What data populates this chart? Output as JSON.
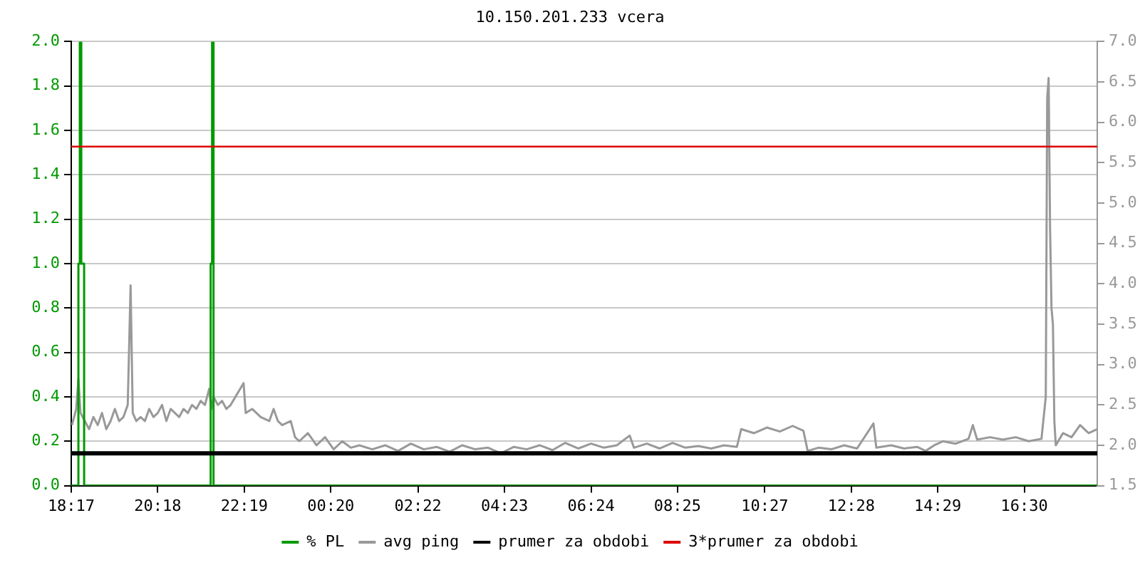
{
  "chart_data": {
    "type": "line",
    "title": "10.150.201.233 vcera",
    "xlim": [
      "--01-01T18:17",
      "--01-02T18:12"
    ],
    "xticks": [
      {
        "value": "--01-01T18:17",
        "label": "18:17"
      },
      {
        "value": "--01-01T20:18",
        "label": "20:18"
      },
      {
        "value": "--01-01T22:19",
        "label": "22:19"
      },
      {
        "value": "--01-02T00:20",
        "label": "00:20"
      },
      {
        "value": "--01-02T02:22",
        "label": "02:22"
      },
      {
        "value": "--01-02T04:23",
        "label": "04:23"
      },
      {
        "value": "--01-02T06:24",
        "label": "06:24"
      },
      {
        "value": "--01-02T08:25",
        "label": "08:25"
      },
      {
        "value": "--01-02T10:27",
        "label": "10:27"
      },
      {
        "value": "--01-02T12:28",
        "label": "12:28"
      },
      {
        "value": "--01-02T14:29",
        "label": "14:29"
      },
      {
        "value": "--01-02T16:30",
        "label": "16:30"
      }
    ],
    "ylim": [
      0,
      2
    ],
    "yticks": [
      {
        "value": 0,
        "label": "0.0"
      },
      {
        "value": 0.2,
        "label": "0.2"
      },
      {
        "value": 0.4,
        "label": "0.4"
      },
      {
        "value": 0.6,
        "label": "0.6"
      },
      {
        "value": 0.8,
        "label": "0.8"
      },
      {
        "value": 1,
        "label": "1.0"
      },
      {
        "value": 1.2,
        "label": "1.2"
      },
      {
        "value": 1.4,
        "label": "1.4"
      },
      {
        "value": 1.6,
        "label": "1.6"
      },
      {
        "value": 1.8,
        "label": "1.8"
      },
      {
        "value": 2,
        "label": "2.0"
      }
    ],
    "y2lim": [
      1.5,
      7
    ],
    "y2ticks": [
      {
        "value": 1.5,
        "label": "1.5"
      },
      {
        "value": 2,
        "label": "2.0"
      },
      {
        "value": 2.5,
        "label": "2.5"
      },
      {
        "value": 3,
        "label": "3.0"
      },
      {
        "value": 3.5,
        "label": "3.5"
      },
      {
        "value": 4,
        "label": "4.0"
      },
      {
        "value": 4.5,
        "label": "4.5"
      },
      {
        "value": 5,
        "label": "5.0"
      },
      {
        "value": 5.5,
        "label": "5.5"
      },
      {
        "value": 6,
        "label": "6.0"
      },
      {
        "value": 6.5,
        "label": "6.5"
      },
      {
        "value": 7,
        "label": "7.0"
      }
    ],
    "grid": "y",
    "legend": "bottom",
    "marker": "none",
    "series": [
      {
        "name": "% PL",
        "type": "step",
        "color": "#009900",
        "x": [
          "--01-01T18:17",
          "--01-01T18:25",
          "--01-01T18:27",
          "--01-01T18:29",
          "--01-01T18:31",
          "--01-01T18:33",
          "--01-01T18:35",
          "--01-01T21:30",
          "--01-01T21:32",
          "--01-01T21:34",
          "--01-01T21:36",
          "--01-02T18:12"
        ],
        "values": [
          0,
          0,
          1,
          2,
          1,
          1,
          0,
          0,
          1,
          2,
          0,
          0
        ]
      },
      {
        "name": "avg ping",
        "axis": "y2",
        "color": "#999999",
        "x": [
          "--01-01T18:18",
          "--01-01T18:24",
          "--01-01T18:27",
          "--01-01T18:30",
          "--01-01T18:36",
          "--01-01T18:42",
          "--01-01T18:48",
          "--01-01T18:54",
          "--01-01T19:00",
          "--01-01T19:06",
          "--01-01T19:12",
          "--01-01T19:18",
          "--01-01T19:24",
          "--01-01T19:30",
          "--01-01T19:36",
          "--01-01T19:40",
          "--01-01T19:43",
          "--01-01T19:48",
          "--01-01T19:54",
          "--01-01T20:00",
          "--01-01T20:06",
          "--01-01T20:12",
          "--01-01T20:18",
          "--01-01T20:24",
          "--01-01T20:30",
          "--01-01T20:36",
          "--01-01T20:42",
          "--01-01T20:48",
          "--01-01T20:54",
          "--01-01T21:00",
          "--01-01T21:06",
          "--01-01T21:12",
          "--01-01T21:18",
          "--01-01T21:24",
          "--01-01T21:30",
          "--01-01T21:33",
          "--01-01T21:36",
          "--01-01T21:42",
          "--01-01T21:48",
          "--01-01T21:54",
          "--01-01T22:00",
          "--01-01T22:18",
          "--01-01T22:21",
          "--01-01T22:30",
          "--01-01T22:42",
          "--01-01T22:54",
          "--01-01T23:00",
          "--01-01T23:06",
          "--01-01T23:12",
          "--01-01T23:24",
          "--01-01T23:30",
          "--01-01T23:36",
          "--01-01T23:48",
          "--01-02T00:00",
          "--01-02T00:12",
          "--01-02T00:24",
          "--01-02T00:36",
          "--01-02T00:48",
          "--01-02T01:00",
          "--01-02T01:18",
          "--01-02T01:36",
          "--01-02T01:54",
          "--01-02T02:12",
          "--01-02T02:30",
          "--01-02T02:48",
          "--01-02T03:06",
          "--01-02T03:24",
          "--01-02T03:42",
          "--01-02T04:00",
          "--01-02T04:18",
          "--01-02T04:36",
          "--01-02T04:54",
          "--01-02T05:12",
          "--01-02T05:30",
          "--01-02T05:48",
          "--01-02T06:06",
          "--01-02T06:24",
          "--01-02T06:42",
          "--01-02T07:00",
          "--01-02T07:18",
          "--01-02T07:24",
          "--01-02T07:42",
          "--01-02T08:00",
          "--01-02T08:18",
          "--01-02T08:36",
          "--01-02T08:54",
          "--01-02T09:12",
          "--01-02T09:30",
          "--01-02T09:48",
          "--01-02T09:54",
          "--01-02T10:12",
          "--01-02T10:30",
          "--01-02T10:48",
          "--01-02T11:06",
          "--01-02T11:21",
          "--01-02T11:27",
          "--01-02T11:42",
          "--01-02T12:00",
          "--01-02T12:18",
          "--01-02T12:36",
          "--01-02T12:59",
          "--01-02T13:03",
          "--01-02T13:24",
          "--01-02T13:42",
          "--01-02T14:00",
          "--01-02T14:12",
          "--01-02T14:24",
          "--01-02T14:36",
          "--01-02T14:54",
          "--01-02T15:12",
          "--01-02T15:18",
          "--01-02T15:24",
          "--01-02T15:42",
          "--01-02T16:00",
          "--01-02T16:18",
          "--01-02T16:36",
          "--01-02T16:54",
          "--01-02T17:00",
          "--01-02T17:02",
          "--01-02T17:04",
          "--01-02T17:06",
          "--01-02T17:08",
          "--01-02T17:10",
          "--01-02T17:12",
          "--01-02T17:14",
          "--01-02T17:24",
          "--01-02T17:36",
          "--01-02T17:48",
          "--01-02T18:00",
          "--01-02T18:12"
        ],
        "values": [
          2.25,
          2.45,
          2.82,
          2.4,
          2.3,
          2.2,
          2.35,
          2.25,
          2.4,
          2.2,
          2.3,
          2.45,
          2.3,
          2.35,
          2.5,
          3.98,
          2.4,
          2.3,
          2.35,
          2.3,
          2.45,
          2.35,
          2.4,
          2.5,
          2.3,
          2.45,
          2.4,
          2.35,
          2.45,
          2.4,
          2.5,
          2.45,
          2.55,
          2.5,
          2.7,
          2.45,
          2.6,
          2.5,
          2.55,
          2.45,
          2.5,
          2.77,
          2.4,
          2.45,
          2.35,
          2.3,
          2.45,
          2.3,
          2.25,
          2.3,
          2.1,
          2.05,
          2.15,
          2.0,
          2.1,
          1.95,
          2.05,
          1.97,
          2.0,
          1.95,
          2.0,
          1.93,
          2.02,
          1.95,
          1.98,
          1.92,
          2.0,
          1.95,
          1.97,
          1.9,
          1.98,
          1.95,
          2.0,
          1.94,
          2.03,
          1.96,
          2.02,
          1.97,
          2.0,
          2.12,
          1.97,
          2.02,
          1.96,
          2.03,
          1.97,
          1.99,
          1.96,
          2.0,
          1.98,
          2.2,
          2.15,
          2.22,
          2.17,
          2.24,
          2.18,
          1.93,
          1.97,
          1.95,
          2.0,
          1.96,
          2.27,
          1.97,
          2.0,
          1.96,
          1.98,
          1.93,
          2.0,
          2.05,
          2.02,
          2.08,
          2.25,
          2.07,
          2.1,
          2.07,
          2.1,
          2.05,
          2.08,
          2.6,
          6.3,
          6.55,
          4.7,
          3.7,
          3.5,
          2.3,
          2.0,
          2.15,
          2.1,
          2.25,
          2.15,
          2.2
        ]
      }
    ],
    "ref_lines": [
      {
        "axis": "y2",
        "value": 1.9,
        "label": "prumer za obdobi",
        "color": "#000000"
      },
      {
        "axis": "y2",
        "value": 5.7,
        "label": "3*prumer za obdobi",
        "color": "#dd0000"
      }
    ]
  }
}
